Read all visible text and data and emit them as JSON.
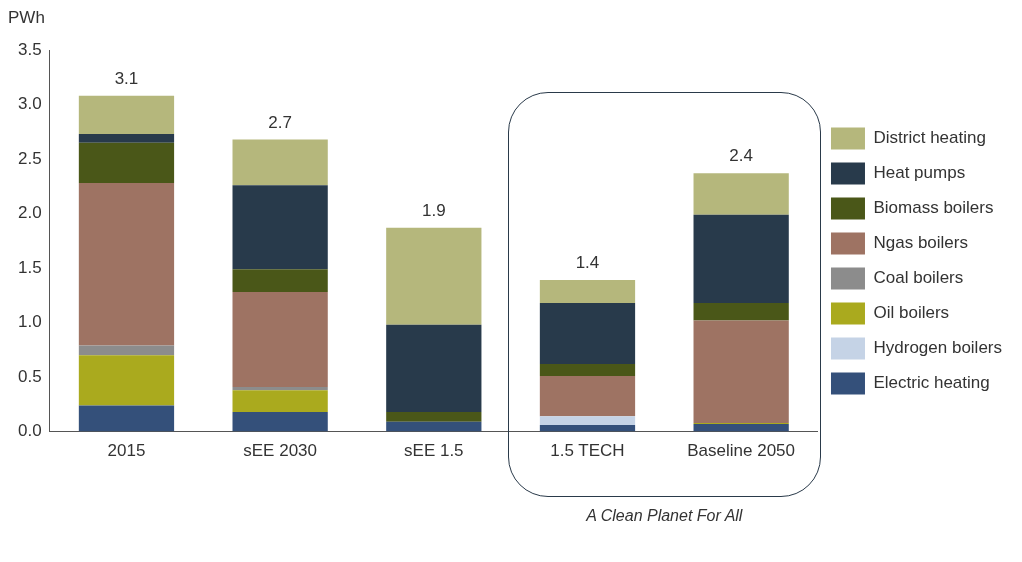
{
  "chart_data": {
    "type": "bar",
    "stacked": true,
    "ylabel": "PWh",
    "categories": [
      "2015",
      "sEE 2030",
      "sEE 1.5",
      "1.5 TECH",
      "Baseline 2050"
    ],
    "series": [
      {
        "name": "Electric heating",
        "color": "#34507a",
        "values": [
          0.24,
          0.18,
          0.09,
          0.06,
          0.07
        ]
      },
      {
        "name": "Hydrogen boilers",
        "color": "#c5d3e6",
        "values": [
          0,
          0,
          0,
          0.08,
          0
        ]
      },
      {
        "name": "Oil boilers",
        "color": "#aaaa1e",
        "values": [
          0.46,
          0.2,
          0,
          0,
          0.01
        ]
      },
      {
        "name": "Coal boilers",
        "color": "#8c8c8c",
        "values": [
          0.09,
          0.03,
          0,
          0,
          0
        ]
      },
      {
        "name": "Ngas boilers",
        "color": "#9e7363",
        "values": [
          1.49,
          0.87,
          0,
          0.37,
          0.94
        ]
      },
      {
        "name": "Biomass boilers",
        "color": "#4a5718",
        "values": [
          0.37,
          0.21,
          0.09,
          0.11,
          0.16
        ]
      },
      {
        "name": "Heat pumps",
        "color": "#283a4b",
        "values": [
          0.08,
          0.77,
          0.8,
          0.56,
          0.81
        ]
      },
      {
        "name": "District heating",
        "color": "#b5b77c",
        "values": [
          0.35,
          0.42,
          0.89,
          0.21,
          0.38
        ]
      }
    ],
    "totals": [
      "3.1",
      "2.7",
      "1.9",
      "1.4",
      "2.4"
    ],
    "ylim": [
      0,
      3.5
    ],
    "yticks": [
      {
        "value": 0,
        "label": "0.0"
      },
      {
        "value": 0.5,
        "label": "0.5"
      },
      {
        "value": 1,
        "label": "1.0"
      },
      {
        "value": 1.5,
        "label": "1.5"
      },
      {
        "value": 2,
        "label": "2.0"
      },
      {
        "value": 2.5,
        "label": "2.5"
      },
      {
        "value": 3,
        "label": "3.0"
      },
      {
        "value": 3.5,
        "label": "3.5"
      }
    ],
    "grid": false,
    "legend": "right",
    "annotations": [
      "A Clean Planet For All"
    ]
  }
}
